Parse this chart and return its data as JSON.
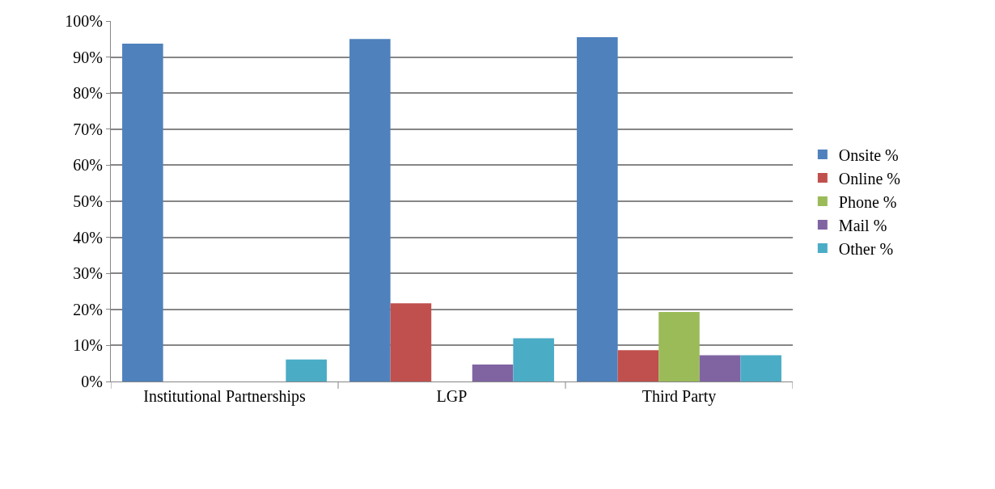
{
  "chart_data": {
    "type": "bar",
    "categories": [
      "Institutional Partnerships",
      "LGP",
      "Third Party"
    ],
    "series": [
      {
        "name": "Onsite %",
        "color": "#4f81bd",
        "values": [
          93.7,
          95.0,
          95.5
        ]
      },
      {
        "name": "Online %",
        "color": "#c0504d",
        "values": [
          0,
          21.7,
          8.7
        ]
      },
      {
        "name": "Phone %",
        "color": "#9bbb59",
        "values": [
          0,
          0,
          19.3
        ]
      },
      {
        "name": "Mail %",
        "color": "#8064a2",
        "values": [
          0,
          4.7,
          7.3
        ]
      },
      {
        "name": "Other %",
        "color": "#4bacc6",
        "values": [
          6.1,
          12.0,
          7.3
        ]
      }
    ],
    "ylim": [
      0,
      100
    ],
    "yticks": [
      {
        "value": 0,
        "label": "0%"
      },
      {
        "value": 10,
        "label": "10%"
      },
      {
        "value": 20,
        "label": "20%"
      },
      {
        "value": 30,
        "label": "30%"
      },
      {
        "value": 40,
        "label": "40%"
      },
      {
        "value": 50,
        "label": "50%"
      },
      {
        "value": 60,
        "label": "60%"
      },
      {
        "value": 70,
        "label": "70%"
      },
      {
        "value": 80,
        "label": "80%"
      },
      {
        "value": 90,
        "label": "90%"
      },
      {
        "value": 100,
        "label": "100%"
      }
    ],
    "grid": "y",
    "legend": "right"
  }
}
